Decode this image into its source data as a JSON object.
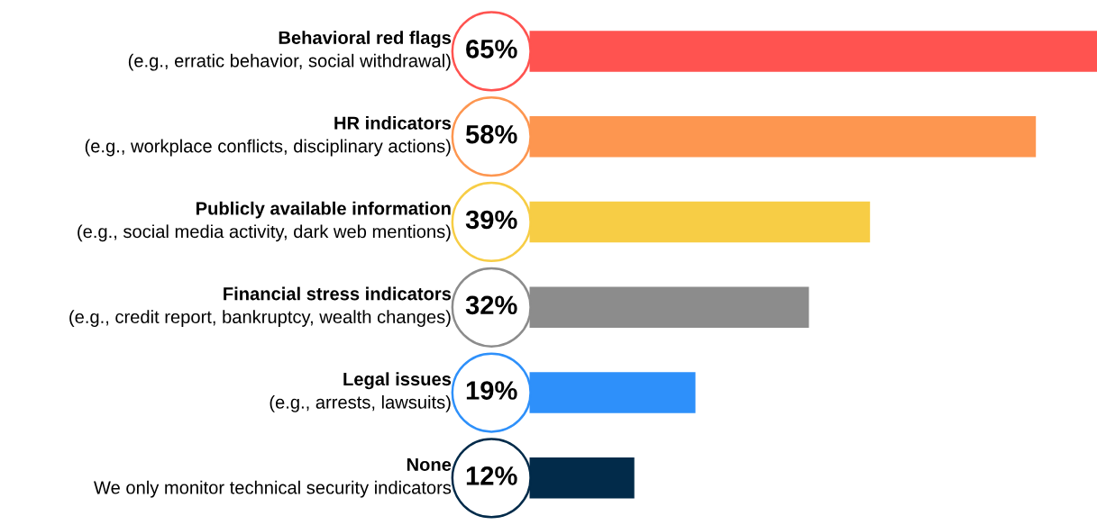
{
  "chart_data": {
    "type": "bar",
    "orientation": "horizontal",
    "categories": [
      "Behavioral red flags\n(e.g., erratic behavior, social withdrawal)",
      "HR indicators\n(e.g., workplace conflicts, disciplinary actions)",
      "Publicly available information\n(e.g., social media activity, dark web mentions)",
      "Financial stress indicators\n(e.g., credit report, bankruptcy, wealth changes)",
      "Legal issues\n(e.g., arrests, lawsuits)",
      "None\nWe only monitor technical security indicators"
    ],
    "values": [
      65,
      58,
      39,
      32,
      19,
      12
    ],
    "value_labels": [
      "65%",
      "58%",
      "39%",
      "32%",
      "19%",
      "12%"
    ],
    "colors": [
      "#ff5350",
      "#fd9650",
      "#f7cd45",
      "#8c8c8c",
      "#2e90fa",
      "#022b4a"
    ]
  }
}
